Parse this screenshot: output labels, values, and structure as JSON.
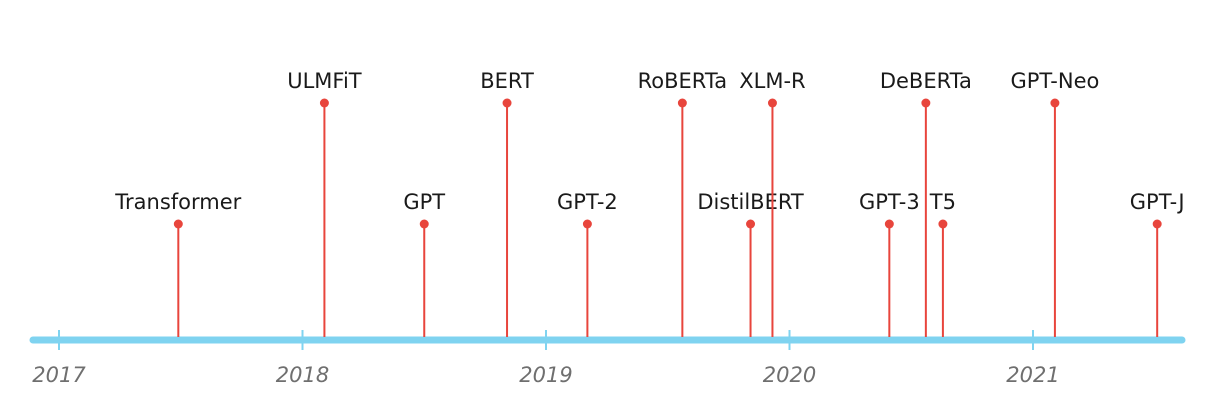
{
  "colors": {
    "axis": "#7fd3f0",
    "stem": "#e8453c",
    "dot": "#e8453c",
    "label": "#1a1a1a",
    "year": "#6f6f6f"
  },
  "years": [
    "2017",
    "2018",
    "2019",
    "2020",
    "2021"
  ],
  "models": [
    {
      "name": "Transformer",
      "date": 2017.49,
      "level": "low"
    },
    {
      "name": "ULMFiT",
      "date": 2018.09,
      "level": "high"
    },
    {
      "name": "GPT",
      "date": 2018.5,
      "level": "low"
    },
    {
      "name": "BERT",
      "date": 2018.84,
      "level": "high"
    },
    {
      "name": "GPT-2",
      "date": 2019.17,
      "level": "low"
    },
    {
      "name": "RoBERTa",
      "date": 2019.56,
      "level": "high"
    },
    {
      "name": "DistilBERT",
      "date": 2019.84,
      "level": "low"
    },
    {
      "name": "XLM-R",
      "date": 2019.93,
      "level": "high"
    },
    {
      "name": "GPT-3",
      "date": 2020.41,
      "level": "low"
    },
    {
      "name": "DeBERTa",
      "date": 2020.56,
      "level": "high"
    },
    {
      "name": "T5",
      "date": 2020.63,
      "level": "low"
    },
    {
      "name": "GPT-Neo",
      "date": 2021.09,
      "level": "high"
    },
    {
      "name": "GPT-J",
      "date": 2021.51,
      "level": "low"
    }
  ]
}
